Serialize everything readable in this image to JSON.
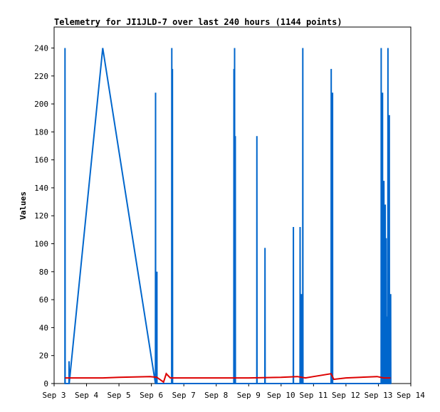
{
  "chart_data": {
    "type": "line",
    "title": "Telemetry for JI1JLD-7 over last 240 hours (1144 points)",
    "xlabel": "",
    "ylabel": "Values",
    "x_axis_type": "date",
    "x_ticks": [
      "Sep 3",
      "Sep 4",
      "Sep 5",
      "Sep 6",
      "Sep 7",
      "Sep 8",
      "Sep 9",
      "Sep 10",
      "Sep 11",
      "Sep 12",
      "Sep 13",
      "Sep 14"
    ],
    "xlim": [
      "2023-09-03T00:00",
      "2023-09-14T00:00"
    ],
    "ylim": [
      0,
      255
    ],
    "y_ticks": [
      0,
      20,
      40,
      60,
      80,
      100,
      120,
      140,
      160,
      180,
      200,
      220,
      240
    ],
    "grid": false,
    "legend": "none",
    "colors": {
      "blue_series": "#0066cc",
      "red_series": "#dd0000"
    },
    "series": [
      {
        "color": "#0066cc",
        "points": [
          [
            "2023-09-03T08:00",
            0
          ],
          [
            "2023-09-03T08:05",
            240
          ],
          [
            "2023-09-03T08:10",
            0
          ],
          [
            "2023-09-03T11:00",
            0
          ],
          [
            "2023-09-03T11:05",
            16
          ],
          [
            "2023-09-03T11:10",
            0
          ],
          [
            "2023-09-04T12:00",
            240
          ],
          [
            "2023-09-06T03:00",
            0
          ],
          [
            "2023-09-06T03:05",
            208
          ],
          [
            "2023-09-06T03:10",
            0
          ],
          [
            "2023-09-06T04:00",
            0
          ],
          [
            "2023-09-06T04:05",
            80
          ],
          [
            "2023-09-06T04:10",
            0
          ],
          [
            "2023-09-06T15:00",
            0
          ],
          [
            "2023-09-06T15:05",
            240
          ],
          [
            "2023-09-06T15:10",
            0
          ],
          [
            "2023-09-06T15:30",
            0
          ],
          [
            "2023-09-06T15:35",
            225
          ],
          [
            "2023-09-06T15:40",
            0
          ],
          [
            "2023-09-08T13:00",
            0
          ],
          [
            "2023-09-08T13:05",
            225
          ],
          [
            "2023-09-08T13:10",
            0
          ],
          [
            "2023-09-08T13:30",
            0
          ],
          [
            "2023-09-08T13:35",
            240
          ],
          [
            "2023-09-08T13:40",
            0
          ],
          [
            "2023-09-08T14:00",
            0
          ],
          [
            "2023-09-08T14:05",
            177
          ],
          [
            "2023-09-08T14:10",
            0
          ],
          [
            "2023-09-09T06:00",
            0
          ],
          [
            "2023-09-09T06:05",
            177
          ],
          [
            "2023-09-09T06:10",
            0
          ],
          [
            "2023-09-09T12:00",
            0
          ],
          [
            "2023-09-09T12:05",
            97
          ],
          [
            "2023-09-09T12:10",
            0
          ],
          [
            "2023-09-10T09:00",
            0
          ],
          [
            "2023-09-10T09:05",
            112
          ],
          [
            "2023-09-10T09:10",
            0
          ],
          [
            "2023-09-10T14:00",
            0
          ],
          [
            "2023-09-10T14:05",
            112
          ],
          [
            "2023-09-10T14:10",
            0
          ],
          [
            "2023-09-10T15:00",
            0
          ],
          [
            "2023-09-10T15:05",
            64
          ],
          [
            "2023-09-10T15:10",
            0
          ],
          [
            "2023-09-10T16:00",
            0
          ],
          [
            "2023-09-10T16:05",
            240
          ],
          [
            "2023-09-10T16:10",
            0
          ],
          [
            "2023-09-11T13:00",
            0
          ],
          [
            "2023-09-11T13:05",
            225
          ],
          [
            "2023-09-11T13:10",
            0
          ],
          [
            "2023-09-11T14:00",
            0
          ],
          [
            "2023-09-11T14:05",
            208
          ],
          [
            "2023-09-11T14:10",
            0
          ],
          [
            "2023-09-13T02:00",
            0
          ],
          [
            "2023-09-13T02:05",
            240
          ],
          [
            "2023-09-13T02:10",
            0
          ],
          [
            "2023-09-13T03:00",
            0
          ],
          [
            "2023-09-13T03:05",
            208
          ],
          [
            "2023-09-13T03:10",
            0
          ],
          [
            "2023-09-13T04:00",
            0
          ],
          [
            "2023-09-13T04:05",
            145
          ],
          [
            "2023-09-13T04:10",
            0
          ],
          [
            "2023-09-13T05:00",
            0
          ],
          [
            "2023-09-13T05:05",
            128
          ],
          [
            "2023-09-13T05:10",
            0
          ],
          [
            "2023-09-13T05:40",
            0
          ],
          [
            "2023-09-13T05:45",
            104
          ],
          [
            "2023-09-13T05:50",
            0
          ],
          [
            "2023-09-13T06:20",
            0
          ],
          [
            "2023-09-13T06:25",
            48
          ],
          [
            "2023-09-13T06:30",
            0
          ],
          [
            "2023-09-13T07:00",
            0
          ],
          [
            "2023-09-13T07:05",
            240
          ],
          [
            "2023-09-13T07:10",
            0
          ],
          [
            "2023-09-13T08:00",
            0
          ],
          [
            "2023-09-13T08:05",
            192
          ],
          [
            "2023-09-13T08:10",
            0
          ],
          [
            "2023-09-13T09:00",
            0
          ],
          [
            "2023-09-13T09:05",
            64
          ],
          [
            "2023-09-13T09:10",
            0
          ]
        ]
      },
      {
        "color": "#dd0000",
        "points": [
          [
            "2023-09-03T08:00",
            4
          ],
          [
            "2023-09-04T12:00",
            4
          ],
          [
            "2023-09-05T00:00",
            4.5
          ],
          [
            "2023-09-05T23:00",
            5
          ],
          [
            "2023-09-06T04:00",
            4.5
          ],
          [
            "2023-09-06T09:00",
            1
          ],
          [
            "2023-09-06T11:00",
            7
          ],
          [
            "2023-09-06T14:00",
            4
          ],
          [
            "2023-09-08T00:00",
            4
          ],
          [
            "2023-09-09T00:00",
            4
          ],
          [
            "2023-09-10T00:00",
            4.5
          ],
          [
            "2023-09-10T12:00",
            5
          ],
          [
            "2023-09-10T18:00",
            4
          ],
          [
            "2023-09-11T00:00",
            5
          ],
          [
            "2023-09-11T13:00",
            7
          ],
          [
            "2023-09-11T15:00",
            3
          ],
          [
            "2023-09-12T00:00",
            4
          ],
          [
            "2023-09-12T23:00",
            5
          ],
          [
            "2023-09-13T04:00",
            4
          ],
          [
            "2023-09-13T09:00",
            4
          ]
        ]
      }
    ]
  }
}
